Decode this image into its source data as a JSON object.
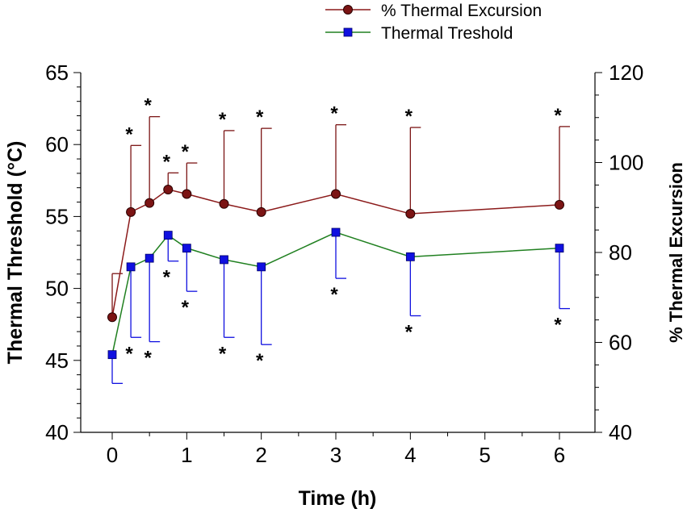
{
  "chart_data": {
    "type": "line",
    "xlabel": "Time (h)",
    "ylabel_left": "Thermal Threshold (°C)",
    "ylabel_right": "% Thermal Excursion",
    "x_ticks": [
      0,
      1,
      2,
      3,
      4,
      5,
      6
    ],
    "x_tick_labels": [
      "0",
      "1",
      "2",
      "3",
      "4",
      "5",
      "6"
    ],
    "y_left_ticks": [
      40,
      45,
      50,
      55,
      60,
      65
    ],
    "y_left_tick_labels": [
      "40",
      "45",
      "50",
      "55",
      "60",
      "65"
    ],
    "y_left_lim": [
      40,
      65
    ],
    "y_right_ticks": [
      40,
      60,
      80,
      100,
      120
    ],
    "y_right_tick_labels": [
      "40",
      "60",
      "80",
      "100",
      "120"
    ],
    "y_right_lim": [
      40,
      120
    ],
    "legend_position": "top-right, above plot",
    "series": [
      {
        "name": "% Thermal Excursion",
        "axis": "right",
        "color": "#7B1414",
        "line_color": "#8B1A1A",
        "marker": "circle",
        "error_direction": "up",
        "x": [
          0,
          0.25,
          0.5,
          0.75,
          1,
          1.5,
          2,
          3,
          4,
          6
        ],
        "values": [
          65.6,
          89,
          91,
          94,
          93,
          90.8,
          89,
          93,
          88.6,
          90.6
        ],
        "error": [
          9.7,
          14.8,
          19.2,
          3.7,
          6.9,
          16.3,
          18.6,
          15.4,
          19.2,
          17.4
        ],
        "significance_marker": "*",
        "significant": [
          false,
          true,
          true,
          true,
          true,
          true,
          true,
          true,
          true,
          true
        ]
      },
      {
        "name": "Thermal Treshold",
        "axis": "left",
        "color": "#1010E0",
        "line_color": "#208020",
        "marker": "square",
        "error_direction": "down",
        "x": [
          0,
          0.25,
          0.5,
          0.75,
          1,
          1.5,
          2,
          3,
          4,
          6
        ],
        "values": [
          45.4,
          51.5,
          52.1,
          53.7,
          52.8,
          52,
          51.5,
          53.9,
          52.2,
          52.8
        ],
        "error": [
          2,
          4.9,
          5.8,
          1.8,
          3,
          5.4,
          5.4,
          3.2,
          4.1,
          4.2
        ],
        "significance_marker": "*",
        "significant": [
          false,
          true,
          true,
          true,
          true,
          true,
          true,
          true,
          true,
          true
        ]
      }
    ]
  }
}
